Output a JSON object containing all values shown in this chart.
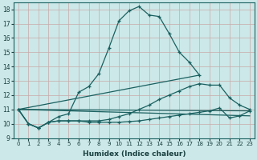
{
  "xlabel": "Humidex (Indice chaleur)",
  "xlim": [
    -0.5,
    23.5
  ],
  "ylim": [
    9,
    18.5
  ],
  "yticks": [
    9,
    10,
    11,
    12,
    13,
    14,
    15,
    16,
    17,
    18
  ],
  "xticks": [
    0,
    1,
    2,
    3,
    4,
    5,
    6,
    7,
    8,
    9,
    10,
    11,
    12,
    13,
    14,
    15,
    16,
    17,
    18,
    19,
    20,
    21,
    22,
    23
  ],
  "bg_color": "#cce8e8",
  "line_color": "#1a6060",
  "series1_x": [
    0,
    1,
    2,
    3,
    4,
    5,
    6,
    7,
    8,
    9,
    10,
    11,
    12,
    13,
    14,
    15,
    16,
    17,
    18
  ],
  "series1_y": [
    11.0,
    10.0,
    9.7,
    10.1,
    10.5,
    10.7,
    12.2,
    12.6,
    13.5,
    15.3,
    17.2,
    17.9,
    18.2,
    17.6,
    17.5,
    16.3,
    15.0,
    14.3,
    13.4
  ],
  "series2_x": [
    0,
    1,
    2,
    3,
    4,
    5,
    6,
    7,
    8,
    9,
    10,
    11,
    12,
    13,
    14,
    15,
    16,
    17,
    18,
    19,
    20,
    21,
    22,
    23
  ],
  "series2_y": [
    11.0,
    10.0,
    9.7,
    10.1,
    10.2,
    10.2,
    10.2,
    10.2,
    10.2,
    10.3,
    10.5,
    10.7,
    11.0,
    11.3,
    11.7,
    12.0,
    12.3,
    12.6,
    12.8,
    12.7,
    12.7,
    11.8,
    11.3,
    11.0
  ],
  "series3_x": [
    0,
    1,
    2,
    3,
    4,
    5,
    6,
    7,
    8,
    9,
    10,
    11,
    12,
    13,
    14,
    15,
    16,
    17,
    18,
    19,
    20,
    21,
    22,
    23
  ],
  "series3_y": [
    11.0,
    10.0,
    9.7,
    10.1,
    10.2,
    10.2,
    10.2,
    10.1,
    10.1,
    10.1,
    10.1,
    10.15,
    10.2,
    10.3,
    10.4,
    10.5,
    10.6,
    10.7,
    10.8,
    10.9,
    11.1,
    10.4,
    10.55,
    10.9
  ],
  "series4_x": [
    0,
    23
  ],
  "series4_y": [
    11.0,
    10.55
  ]
}
